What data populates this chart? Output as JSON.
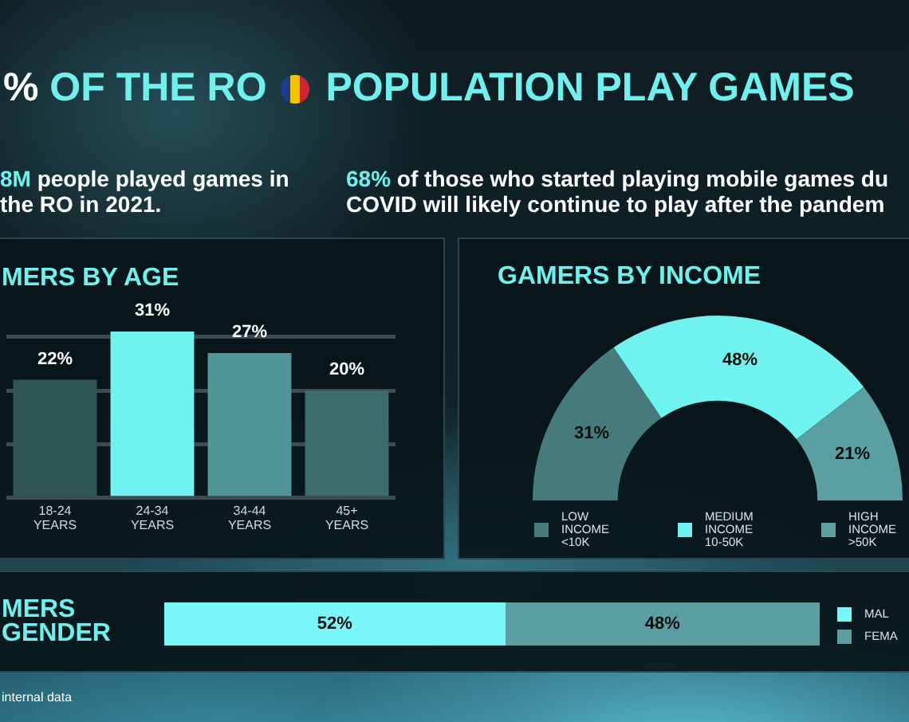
{
  "chart_data": [
    {
      "type": "other",
      "title": "% OF THE RO POPULATION PLAY GAMES",
      "annotations": [
        "8M people played games in the RO in 2021.",
        "68% of those who started playing mobile games du COVID will likely continue to play after the pandem"
      ]
    },
    {
      "type": "bar",
      "title": "MERS BY AGE",
      "categories": [
        "18-24 YEARS",
        "24-34 YEARS",
        "34-44 YEARS",
        "45+ YEARS"
      ],
      "values": [
        22,
        31,
        27,
        20
      ],
      "colors": [
        "#2f5554",
        "#70f2f0",
        "#4f9699",
        "#3d6c6d"
      ],
      "value_labels": [
        "22%",
        "31%",
        "27%",
        "20%"
      ],
      "ylim": [
        0,
        31
      ],
      "yticks": [
        {
          "value": 0,
          "label": null
        },
        {
          "value": 10,
          "label": null
        },
        {
          "value": 20,
          "label": null
        },
        {
          "value": 30,
          "label": null
        }
      ],
      "grid": "y",
      "tick_labels": "x"
    },
    {
      "type": "donut",
      "title": "GAMERS BY INCOME",
      "categories": [
        "LOW INCOME <10K",
        "MEDIUM INCOME 10-50K",
        "HIGH INCOME >50K"
      ],
      "values": [
        31,
        48,
        21
      ],
      "colors": [
        "#467b7d",
        "#70f2f0",
        "#5b9fa2"
      ],
      "value_labels": [
        "31%",
        "48%",
        "21%"
      ],
      "legend": "bottom"
    },
    {
      "type": "bar",
      "title": "MERS GENDER",
      "orientation": "horizontal",
      "stacked": true,
      "categories": [
        null
      ],
      "series": [
        {
          "name": "MAL",
          "color": "#78f6f8",
          "values": [
            52
          ],
          "value_labels": [
            "52%"
          ]
        },
        {
          "name": "FEMA",
          "color": "#5a9ea1",
          "values": [
            48
          ],
          "value_labels": [
            "48%"
          ]
        }
      ],
      "legend": "right",
      "annotations": [
        "internal data"
      ]
    }
  ]
}
